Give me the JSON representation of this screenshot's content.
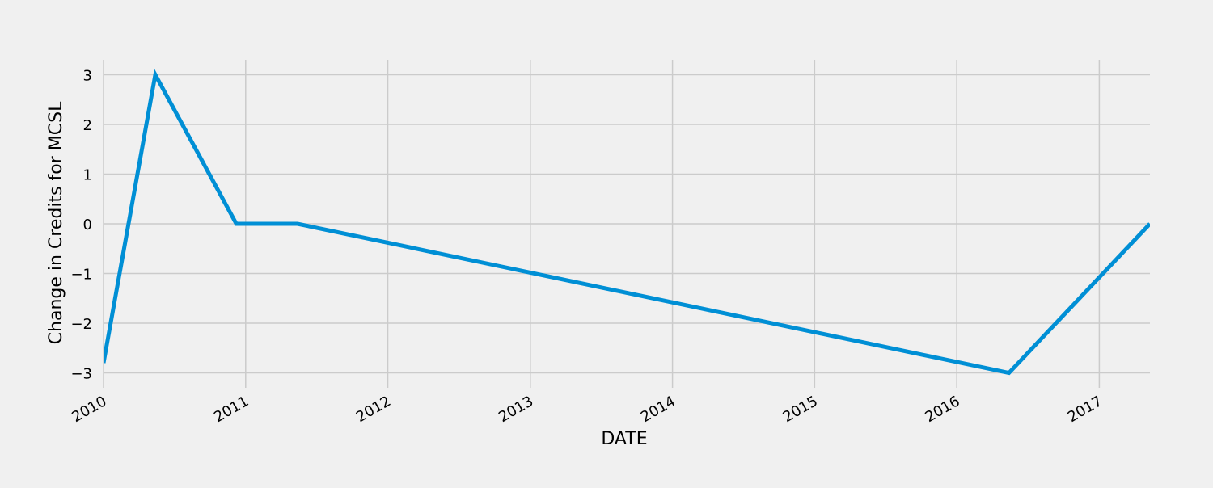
{
  "chart_data": {
    "type": "line",
    "title": "",
    "xlabel": "DATE",
    "ylabel": "Change in Credits for MCSL",
    "x_tick_labels": [
      "2010",
      "2011",
      "2012",
      "2013",
      "2014",
      "2015",
      "2016",
      "2017"
    ],
    "y_tick_labels": [
      "−3",
      "−2",
      "−1",
      "0",
      "1",
      "2",
      "3"
    ],
    "y_ticks": [
      -3,
      -2,
      -1,
      0,
      1,
      2,
      3
    ],
    "xlim": [
      "2010-01-01",
      "2017-05-11"
    ],
    "ylim": [
      -3.3,
      3.3
    ],
    "grid": true,
    "series": [
      {
        "color": "#008fd5",
        "points": [
          {
            "x": "2010-01-01",
            "y": -2.8
          },
          {
            "x": "2010-05-14",
            "y": 3
          },
          {
            "x": "2010-12-08",
            "y": 0
          },
          {
            "x": "2011-05-14",
            "y": 0
          },
          {
            "x": "2016-05-14",
            "y": -3
          },
          {
            "x": "2017-05-11",
            "y": 0
          }
        ]
      }
    ]
  }
}
